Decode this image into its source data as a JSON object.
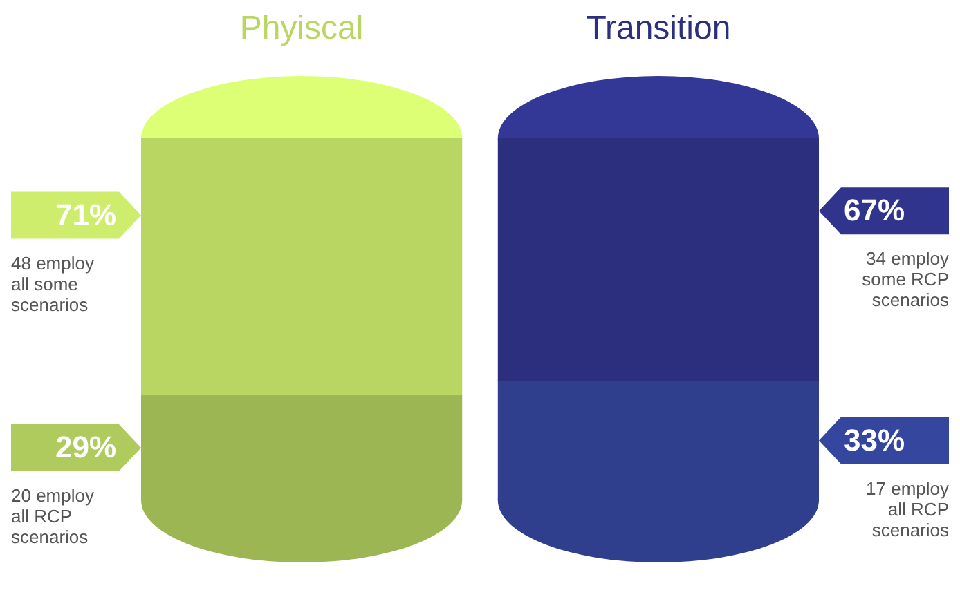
{
  "chart_data": {
    "type": "bar",
    "stacked": true,
    "categories": [
      "Phyiscal",
      "Transition"
    ],
    "series": [
      {
        "colors": [
          "#9db654",
          "#2f3f8e"
        ],
        "values": [
          29,
          33
        ],
        "value_labels": [
          "29%",
          "33%"
        ]
      },
      {
        "colors": [
          "#b9d562",
          "#2b2f7e"
        ],
        "values": [
          71,
          67
        ],
        "value_labels": [
          "71%",
          "67%"
        ]
      }
    ],
    "annotations": [
      "20 employ all RCP scenarios",
      "48 employ all some scenarios",
      "17 employ all RCP scenarios",
      "34 employ some RCP scenarios"
    ]
  }
}
